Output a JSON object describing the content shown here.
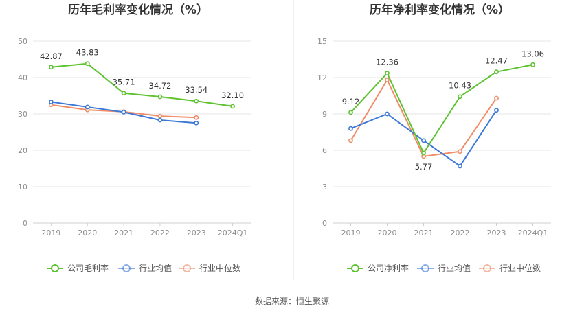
{
  "chart_data": [
    {
      "type": "line",
      "title": "历年毛利率变化情况（%）",
      "categories": [
        "2019",
        "2020",
        "2021",
        "2022",
        "2023",
        "2024Q1"
      ],
      "ylim": [
        0,
        50
      ],
      "yticks": [
        0,
        10,
        20,
        30,
        40,
        50
      ],
      "grid": true,
      "legend_position": "bottom",
      "series": [
        {
          "name": "公司毛利率",
          "color": "#5cc22e",
          "values": [
            42.87,
            43.83,
            35.71,
            34.72,
            33.54,
            32.1
          ],
          "labels": [
            "42.87",
            "43.83",
            "35.71",
            "34.72",
            "33.54",
            "32.10"
          ]
        },
        {
          "name": "行业均值",
          "color": "#3b78d8",
          "values": [
            33.3,
            31.9,
            30.5,
            28.3,
            27.5,
            null
          ]
        },
        {
          "name": "行业中位数",
          "color": "#f08d68",
          "values": [
            32.5,
            31.1,
            30.6,
            29.4,
            29.0,
            null
          ]
        }
      ]
    },
    {
      "type": "line",
      "title": "历年净利率变化情况（%）",
      "categories": [
        "2019",
        "2020",
        "2021",
        "2022",
        "2023",
        "2024Q1"
      ],
      "ylim": [
        0,
        15
      ],
      "yticks": [
        0,
        3,
        6,
        9,
        12,
        15
      ],
      "grid": true,
      "legend_position": "bottom",
      "series": [
        {
          "name": "公司净利率",
          "color": "#5cc22e",
          "values": [
            9.12,
            12.36,
            5.77,
            10.43,
            12.47,
            13.06
          ],
          "labels": [
            "9.12",
            "12.36",
            "5.77",
            "10.43",
            "12.47",
            "13.06"
          ]
        },
        {
          "name": "行业均值",
          "color": "#3b78d8",
          "values": [
            7.8,
            9.0,
            6.8,
            4.7,
            9.3,
            null
          ]
        },
        {
          "name": "行业中位数",
          "color": "#f08d68",
          "values": [
            6.8,
            11.8,
            5.5,
            5.9,
            10.3,
            null
          ]
        }
      ]
    }
  ],
  "source": "数据来源：恒生聚源"
}
